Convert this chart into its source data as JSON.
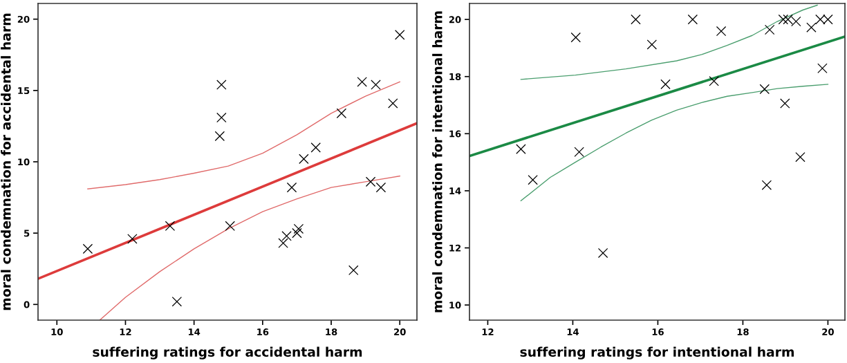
{
  "chart_data": [
    {
      "type": "scatter",
      "xlabel": "suffering ratings for accidental harm",
      "ylabel": "moral condemnation for accidental harm",
      "xlim": [
        9.45,
        20.5
      ],
      "ylim": [
        -1.1,
        21.1
      ],
      "xticks": [
        10,
        12,
        14,
        16,
        18,
        20
      ],
      "yticks": [
        0,
        5,
        10,
        15,
        20
      ],
      "series": [
        {
          "marker": "cross",
          "color": "#000000",
          "x": [
            10.9,
            12.2,
            13.3,
            13.5,
            14.75,
            14.8,
            14.8,
            15.05,
            16.6,
            16.7,
            17.0,
            17.05,
            16.85,
            17.2,
            17.55,
            18.3,
            18.65,
            18.9,
            19.3,
            19.15,
            19.45,
            19.8,
            20.0
          ],
          "values": [
            3.9,
            4.6,
            5.5,
            0.2,
            11.8,
            13.1,
            15.4,
            5.5,
            4.3,
            4.8,
            5.0,
            5.3,
            8.2,
            10.2,
            11.0,
            13.4,
            2.4,
            15.6,
            15.4,
            8.6,
            8.2,
            14.1,
            18.9
          ]
        },
        {
          "type": "line",
          "color": "#dd3b3b",
          "x": [
            9.45,
            20.5
          ],
          "values": [
            1.8,
            12.7
          ]
        },
        {
          "type": "line",
          "color": "#e06a6a",
          "x": [
            10.9,
            12,
            13,
            14,
            15,
            16,
            17,
            18,
            19,
            20
          ],
          "values": [
            8.1,
            8.4,
            8.75,
            9.2,
            9.7,
            10.6,
            11.9,
            13.4,
            14.6,
            15.6
          ]
        },
        {
          "type": "line",
          "color": "#e06a6a",
          "x": [
            11.25,
            12,
            13,
            14,
            15,
            16,
            17,
            18,
            19,
            20
          ],
          "values": [
            -1.1,
            0.5,
            2.3,
            3.9,
            5.3,
            6.5,
            7.4,
            8.2,
            8.6,
            9.0
          ]
        }
      ]
    },
    {
      "type": "scatter",
      "xlabel": "suffering ratings for intentional harm",
      "ylabel": "moral condemnation for intentional harm",
      "xlim": [
        11.57,
        20.4
      ],
      "ylim": [
        9.47,
        20.56
      ],
      "xticks": [
        12,
        14,
        16,
        18,
        20
      ],
      "yticks": [
        10,
        12,
        14,
        16,
        18,
        20
      ],
      "series": [
        {
          "marker": "cross",
          "color": "#000000",
          "x": [
            12.78,
            13.06,
            14.07,
            14.15,
            14.71,
            15.48,
            15.86,
            16.18,
            16.82,
            17.32,
            17.49,
            18.51,
            18.56,
            18.63,
            18.95,
            19.06,
            18.99,
            19.25,
            19.35,
            19.61,
            19.82,
            19.87,
            20.0
          ],
          "values": [
            15.46,
            14.38,
            19.37,
            15.36,
            11.82,
            20,
            19.12,
            17.73,
            20,
            17.84,
            19.59,
            17.56,
            14.2,
            19.64,
            20,
            20,
            17.06,
            19.93,
            15.18,
            19.72,
            20,
            18.29,
            20
          ]
        },
        {
          "type": "line",
          "color": "#1b8a45",
          "x": [
            11.57,
            20.4
          ],
          "values": [
            15.22,
            19.4
          ]
        },
        {
          "type": "line",
          "color": "#4a9e6e",
          "x": [
            12.78,
            14.06,
            15.25,
            16.44,
            17.03,
            17.63,
            18.22,
            18.81,
            19.41,
            19.75
          ],
          "values": [
            17.9,
            18.05,
            18.27,
            18.55,
            18.77,
            19.09,
            19.44,
            19.93,
            20.33,
            20.5
          ]
        },
        {
          "type": "line",
          "color": "#4a9e6e",
          "x": [
            12.78,
            13.47,
            14.06,
            14.66,
            15.25,
            15.85,
            16.44,
            17.03,
            17.63,
            18.22,
            18.81,
            19.41,
            20.0
          ],
          "values": [
            13.65,
            14.47,
            15.0,
            15.53,
            16.02,
            16.47,
            16.82,
            17.09,
            17.31,
            17.44,
            17.58,
            17.66,
            17.73
          ]
        }
      ]
    }
  ]
}
